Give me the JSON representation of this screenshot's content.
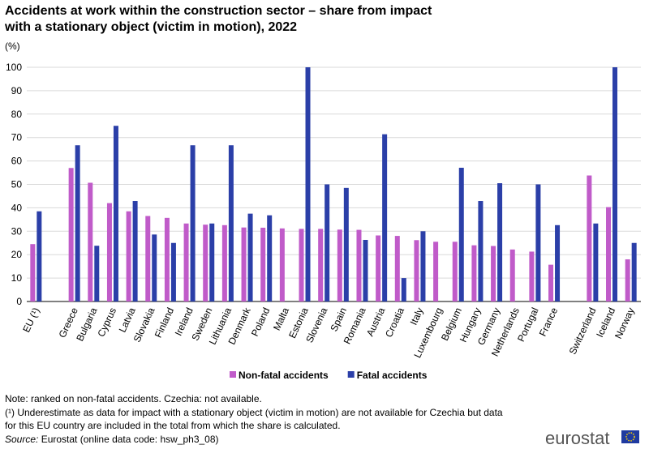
{
  "chart_data": {
    "type": "bar",
    "title_lines": [
      "Accidents at work within the construction sector – share from impact",
      "with a stationary object (victim in motion), 2022"
    ],
    "unit": "(%)",
    "categories": [
      "EU (¹)",
      null,
      "Greece",
      "Bulgaria",
      "Cyprus",
      "Latvia",
      "Slovakia",
      "Finland",
      "Ireland",
      "Sweden",
      "Lithuania",
      "Denmark",
      "Poland",
      "Malta",
      "Estonia",
      "Slovenia",
      "Spain",
      "Romania",
      "Austria",
      "Croatia",
      "Italy",
      "Luxembourg",
      "Belgium",
      "Hungary",
      "Germany",
      "Netherlands",
      "Portugal",
      "France",
      null,
      "Switzerland",
      "Iceland",
      "Norway"
    ],
    "series": [
      {
        "name": "Non-fatal accidents",
        "color": "#c05bc9",
        "values": [
          24.5,
          null,
          57,
          50.7,
          42,
          38.5,
          36.5,
          35.7,
          33.3,
          32.8,
          32.6,
          31.6,
          31.5,
          31.2,
          31,
          31,
          30.7,
          30.6,
          28.2,
          28,
          26.2,
          25.5,
          25.5,
          24,
          23.7,
          22.2,
          21.3,
          15.7,
          null,
          53.8,
          40.3,
          18
        ]
      },
      {
        "name": "Fatal accidents",
        "color": "#2b3fa8",
        "values": [
          38.5,
          null,
          66.7,
          23.8,
          75,
          42.9,
          28.6,
          25,
          66.7,
          33.3,
          66.7,
          37.5,
          36.8,
          null,
          100,
          50,
          48.5,
          26.3,
          71.4,
          10,
          30,
          null,
          57.1,
          42.9,
          50.5,
          null,
          50,
          32.6,
          null,
          33.3,
          100,
          25
        ]
      }
    ],
    "ylim": [
      0,
      100
    ],
    "yticks": [
      0,
      10,
      20,
      30,
      40,
      50,
      60,
      70,
      80,
      90,
      100
    ],
    "grid": true,
    "notes": [
      "Note: ranked on non-fatal accidents. Czechia: not available.",
      "(¹) Underestimate as data for impact with a stationary object (victim in motion) are not available for Czechia but data",
      "for this EU country are included in the total from which the share is calculated."
    ],
    "source_label": "Source:",
    "source": "Eurostat (online data code: hsw_ph3_08)",
    "logo": "eurostat"
  }
}
